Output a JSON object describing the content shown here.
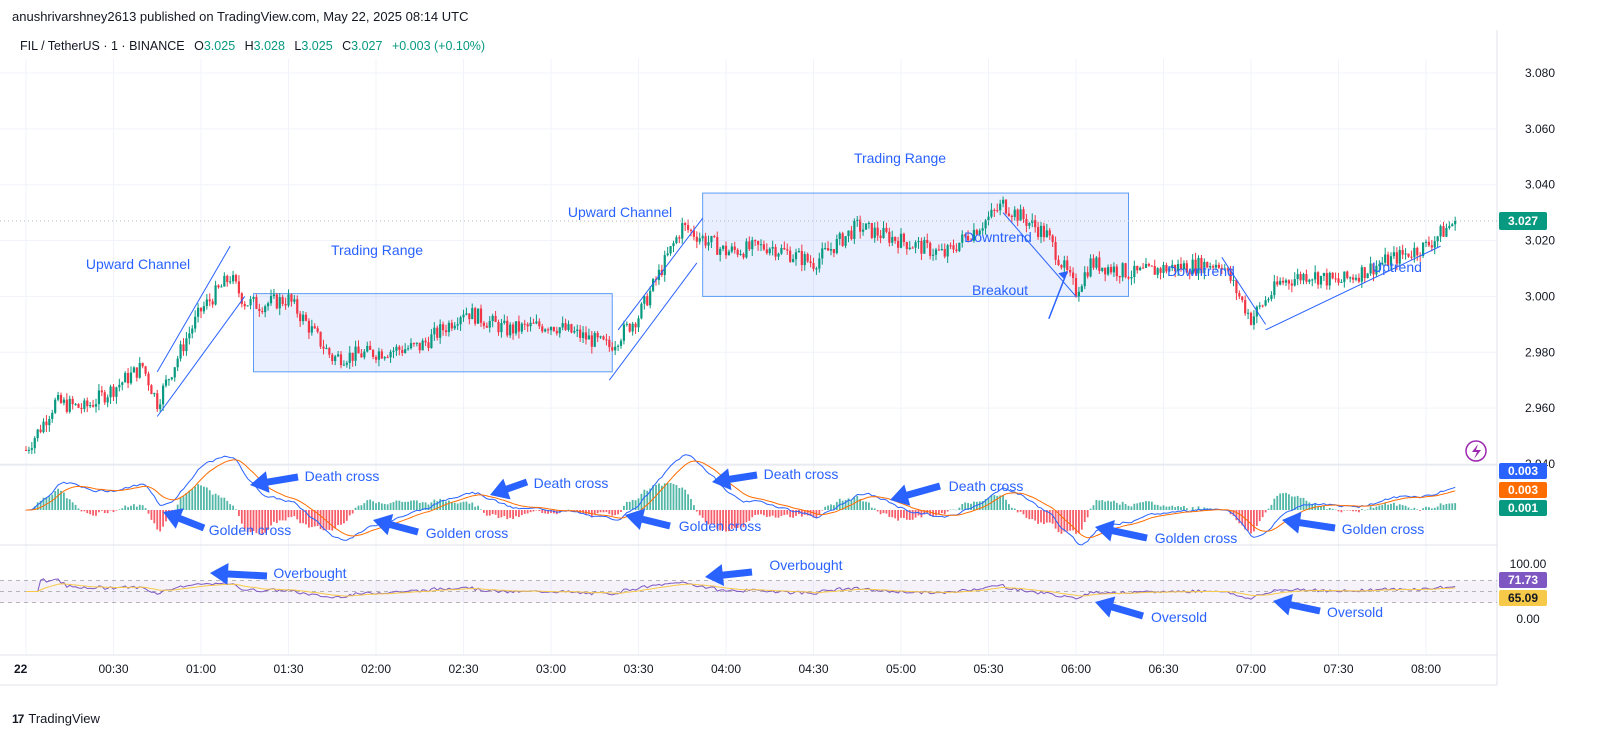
{
  "header": {
    "published": "anushrivarshney2613 published on TradingView.com, May 22, 2025 08:14 UTC"
  },
  "legend": {
    "symbol": "FIL / TetherUS · 1 · BINANCE",
    "o_key": "O",
    "o_val": "3.025",
    "h_key": "H",
    "h_val": "3.028",
    "l_key": "L",
    "l_val": "3.025",
    "c_key": "C",
    "c_val": "3.027",
    "change": "+0.003 (+0.10%)"
  },
  "brand": {
    "logo": "17",
    "name": "TradingView"
  },
  "colors": {
    "up": "#089981",
    "down": "#f23645",
    "annotation": "#2962ff",
    "macd_line": "#2962ff",
    "signal_line": "#ff6d00",
    "rsi_line": "#7e57c2",
    "rsi_ma": "#f7c948"
  },
  "chart_data": [
    {
      "type": "candlestick",
      "price_axis": {
        "ylim": [
          2.94,
          3.085
        ],
        "ticks": [
          "3.080",
          "3.060",
          "3.040",
          "3.020",
          "3.000",
          "2.980",
          "2.960",
          "2.940"
        ]
      },
      "time_axis": {
        "ticks": [
          "22",
          "00:30",
          "01:00",
          "01:30",
          "02:00",
          "02:30",
          "03:00",
          "03:30",
          "04:00",
          "04:30",
          "05:00",
          "05:30",
          "06:00",
          "06:30",
          "07:00",
          "07:30",
          "08:00"
        ]
      },
      "last_price": "3.027",
      "keypoints": [
        {
          "t": "00:00",
          "p": 2.945
        },
        {
          "t": "00:05",
          "p": 2.953
        },
        {
          "t": "00:10",
          "p": 2.962
        },
        {
          "t": "00:20",
          "p": 2.96
        },
        {
          "t": "00:30",
          "p": 2.967
        },
        {
          "t": "00:40",
          "p": 2.975
        },
        {
          "t": "00:45",
          "p": 2.962
        },
        {
          "t": "00:55",
          "p": 2.985
        },
        {
          "t": "01:00",
          "p": 2.995
        },
        {
          "t": "01:10",
          "p": 3.007
        },
        {
          "t": "01:15",
          "p": 2.998
        },
        {
          "t": "01:20",
          "p": 2.997
        },
        {
          "t": "01:30",
          "p": 2.999
        },
        {
          "t": "01:40",
          "p": 2.985
        },
        {
          "t": "01:45",
          "p": 2.978
        },
        {
          "t": "02:00",
          "p": 2.98
        },
        {
          "t": "02:15",
          "p": 2.982
        },
        {
          "t": "02:25",
          "p": 2.99
        },
        {
          "t": "02:30",
          "p": 2.995
        },
        {
          "t": "02:45",
          "p": 2.988
        },
        {
          "t": "03:00",
          "p": 2.99
        },
        {
          "t": "03:10",
          "p": 2.986
        },
        {
          "t": "03:20",
          "p": 2.982
        },
        {
          "t": "03:30",
          "p": 2.993
        },
        {
          "t": "03:45",
          "p": 3.025
        },
        {
          "t": "04:00",
          "p": 3.016
        },
        {
          "t": "04:15",
          "p": 3.018
        },
        {
          "t": "04:30",
          "p": 3.012
        },
        {
          "t": "04:45",
          "p": 3.025
        },
        {
          "t": "05:00",
          "p": 3.02
        },
        {
          "t": "05:15",
          "p": 3.015
        },
        {
          "t": "05:30",
          "p": 3.028
        },
        {
          "t": "05:35",
          "p": 3.033
        },
        {
          "t": "05:50",
          "p": 3.022
        },
        {
          "t": "06:00",
          "p": 3.002
        },
        {
          "t": "06:05",
          "p": 3.012
        },
        {
          "t": "06:20",
          "p": 3.008
        },
        {
          "t": "06:30",
          "p": 3.01
        },
        {
          "t": "06:50",
          "p": 3.012
        },
        {
          "t": "07:00",
          "p": 2.992
        },
        {
          "t": "07:10",
          "p": 3.005
        },
        {
          "t": "07:20",
          "p": 3.008
        },
        {
          "t": "07:30",
          "p": 3.005
        },
        {
          "t": "07:45",
          "p": 3.012
        },
        {
          "t": "08:00",
          "p": 3.018
        },
        {
          "t": "08:10",
          "p": 3.027
        }
      ]
    },
    {
      "type": "line",
      "name_hidden": "MACD",
      "value_tags": [
        "0.003",
        "0.003",
        "0.001"
      ]
    },
    {
      "type": "line",
      "name_hidden": "RSI",
      "ticks": [
        "100.00",
        "0.00"
      ],
      "band": [
        30,
        70
      ],
      "value_tags": [
        "71.73",
        "65.09"
      ]
    }
  ],
  "annotations": {
    "upward_channel_1": "Upward Channel",
    "trading_range_1": "Trading Range",
    "upward_channel_2": "Upward Channel",
    "trading_range_2": "Trading Range",
    "downtrend_1": "Downtrend",
    "breakout": "Breakout",
    "downtrend_2": "Downtrend",
    "uptrend": "Uptrend",
    "death_cross": "Death cross",
    "golden_cross": "Golden cross",
    "overbought": "Overbought",
    "oversold": "Oversold"
  }
}
